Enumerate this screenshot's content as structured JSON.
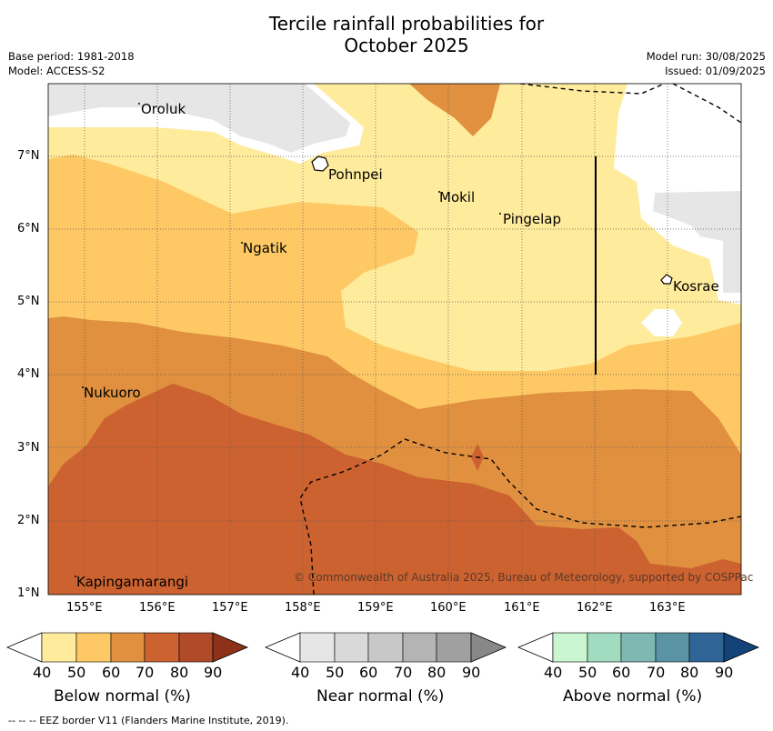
{
  "title_line1": "Tercile rainfall probabilities for",
  "title_line2": "October 2025",
  "base_period": "Base period: 1981-2018",
  "model": "Model: ACCESS-S2",
  "model_run": "Model run: 30/08/2025",
  "issued": "Issued: 01/09/2025",
  "copyright": "© Commonwealth of Australia 2025, Bureau of Meteorology, supported by COSPPac",
  "footer": "--  --  -- EEZ border V11 (Flanders Marine Institute, 2019).",
  "x_ticks": [
    "155°E",
    "156°E",
    "157°E",
    "158°E",
    "159°E",
    "160°E",
    "161°E",
    "162°E",
    "163°E"
  ],
  "y_ticks": [
    "7°N",
    "6°N",
    "5°N",
    "4°N",
    "3°N",
    "2°N",
    "1°N"
  ],
  "places": [
    "Oroluk",
    "Pohnpei",
    "Mokil",
    "Pingelap",
    "Ngatik",
    "Kosrae",
    "Nukuoro",
    "Kapingamarangi"
  ],
  "colorbars": [
    {
      "title": "Below normal (%)",
      "labels": [
        "40",
        "50",
        "60",
        "70",
        "80",
        "90"
      ],
      "colors": [
        "#ffeb9c",
        "#fec965",
        "#e0903f",
        "#cc6230",
        "#b04a28",
        "#8d3218"
      ]
    },
    {
      "title": "Near normal (%)",
      "labels": [
        "40",
        "50",
        "60",
        "70",
        "80",
        "90"
      ],
      "colors": [
        "#e6e6e6",
        "#d9d9d9",
        "#c8c8c8",
        "#b4b4b4",
        "#a0a0a0",
        "#888888"
      ]
    },
    {
      "title": "Above normal (%)",
      "labels": [
        "40",
        "50",
        "60",
        "70",
        "80",
        "90"
      ],
      "colors": [
        "#c9f5d0",
        "#a1dcc0",
        "#7fb8b3",
        "#5a94a4",
        "#2f6497",
        "#14437a"
      ]
    }
  ]
}
